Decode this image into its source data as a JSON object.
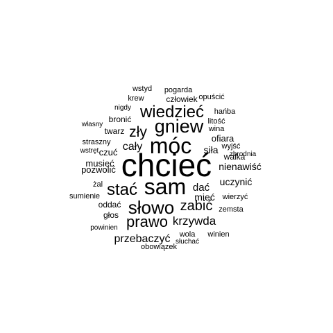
{
  "word_cloud": {
    "words": [
      {
        "text": "chcieć"
      },
      {
        "text": "sam"
      },
      {
        "text": "móc"
      },
      {
        "text": "słowo"
      },
      {
        "text": "gniew"
      },
      {
        "text": "wiedzieć"
      },
      {
        "text": "stać"
      },
      {
        "text": "prawo"
      },
      {
        "text": "zły"
      },
      {
        "text": "zabić"
      },
      {
        "text": "krzywda"
      },
      {
        "text": "przebaczyć"
      },
      {
        "text": "cały"
      },
      {
        "text": "nienawiść"
      },
      {
        "text": "dać"
      },
      {
        "text": "mieć"
      },
      {
        "text": "uczynić"
      },
      {
        "text": "siła"
      },
      {
        "text": "ofiara"
      },
      {
        "text": "musieć"
      },
      {
        "text": "pozwolić"
      },
      {
        "text": "czuć"
      },
      {
        "text": "walka"
      },
      {
        "text": "człowiek"
      },
      {
        "text": "twarz"
      },
      {
        "text": "bronić"
      },
      {
        "text": "wina"
      },
      {
        "text": "oddać"
      },
      {
        "text": "zemsta"
      },
      {
        "text": "głos"
      },
      {
        "text": "wola"
      },
      {
        "text": "straszny"
      },
      {
        "text": "wyjść"
      },
      {
        "text": "wierzyć"
      },
      {
        "text": "pogarda"
      },
      {
        "text": "wstyd"
      },
      {
        "text": "krew"
      },
      {
        "text": "opuścić"
      },
      {
        "text": "nigdy"
      },
      {
        "text": "hańba"
      },
      {
        "text": "litość"
      },
      {
        "text": "własny"
      },
      {
        "text": "wstręt"
      },
      {
        "text": "zbrodnia"
      },
      {
        "text": "żal"
      },
      {
        "text": "sumienie"
      },
      {
        "text": "powinien"
      },
      {
        "text": "winien"
      },
      {
        "text": "słuchać"
      },
      {
        "text": "obowiązek"
      }
    ]
  }
}
